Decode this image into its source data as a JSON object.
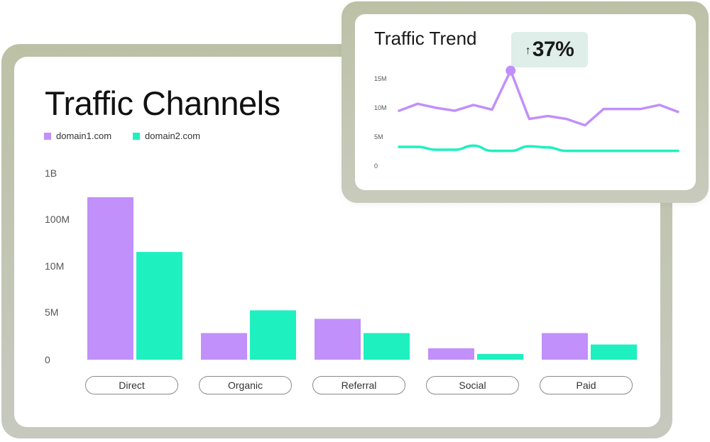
{
  "colors": {
    "domain1": "#c190fa",
    "domain2": "#1ef0c0"
  },
  "channels_chart": {
    "title": "Traffic Channels",
    "legend": [
      {
        "name": "domain1.com",
        "color": "#c190fa"
      },
      {
        "name": "domain2.com",
        "color": "#1ef0c0"
      }
    ]
  },
  "trend_chart": {
    "title": "Traffic Trend",
    "badge": {
      "arrow": "↑",
      "value": "37%"
    }
  },
  "chart_data": [
    {
      "type": "bar",
      "title": "Traffic Channels",
      "categories": [
        "Direct",
        "Organic",
        "Referral",
        "Social",
        "Paid"
      ],
      "y_tick_labels": [
        "0",
        "5M",
        "10M",
        "100M",
        "1B"
      ],
      "y_scale": "nonlinear (log-like)",
      "series": [
        {
          "name": "domain1.com",
          "values": [
            300000000,
            2800000,
            4300000,
            1200000,
            2800000
          ]
        },
        {
          "name": "domain2.com",
          "values": [
            20000000,
            5200000,
            2800000,
            600000,
            1600000
          ]
        }
      ],
      "legend": "top-left",
      "grid": false
    },
    {
      "type": "line",
      "title": "Traffic Trend",
      "y_tick_labels": [
        "0",
        "5M",
        "10M",
        "15M"
      ],
      "ylim": [
        0,
        15000000
      ],
      "x": [
        0,
        1,
        2,
        3,
        4,
        5,
        6,
        7,
        8,
        9,
        10,
        11,
        12,
        13,
        14,
        15
      ],
      "series": [
        {
          "values": [
            9500000,
            10700000,
            10000000,
            9500000,
            10500000,
            9700000,
            16400000,
            8100000,
            8600000,
            8100000,
            7000000,
            9800000,
            9800000,
            9800000,
            10500000,
            9300000
          ],
          "color": "#c190fa"
        },
        {
          "values": [
            3300000,
            3300000,
            2800000,
            2800000,
            3500000,
            2600000,
            2600000,
            3400000,
            3200000,
            2600000,
            2600000,
            2600000,
            2600000,
            2600000,
            2600000,
            2600000
          ],
          "color": "#1ef0c0"
        }
      ],
      "highlight_point_index": 6,
      "grid": false
    }
  ]
}
